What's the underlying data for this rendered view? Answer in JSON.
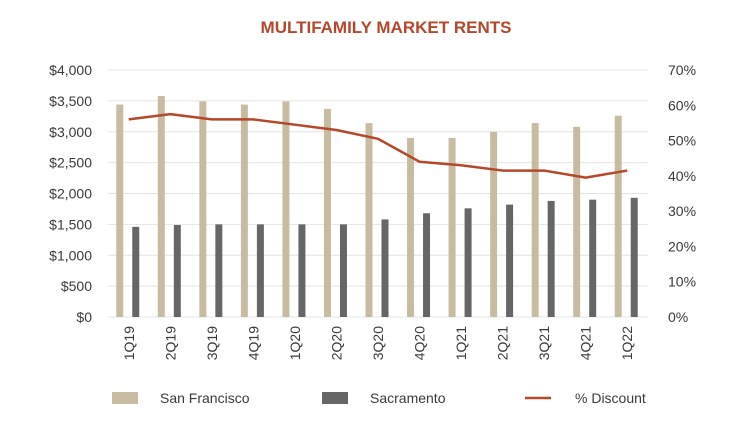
{
  "chart_data": {
    "type": "bar",
    "title": "MULTIFAMILY MARKET RENTS",
    "categories": [
      "1Q19",
      "2Q19",
      "3Q19",
      "4Q19",
      "1Q20",
      "2Q20",
      "3Q20",
      "4Q20",
      "1Q21",
      "2Q21",
      "3Q21",
      "4Q21",
      "1Q22"
    ],
    "series": [
      {
        "name": "San Francisco",
        "kind": "bar",
        "axis": "left",
        "color": "#c7bca2",
        "values": [
          3440,
          3580,
          3490,
          3440,
          3490,
          3370,
          3140,
          2900,
          2900,
          3000,
          3140,
          3080,
          3260
        ]
      },
      {
        "name": "Sacramento",
        "kind": "bar",
        "axis": "left",
        "color": "#666666",
        "values": [
          1460,
          1490,
          1500,
          1500,
          1500,
          1500,
          1580,
          1680,
          1760,
          1820,
          1880,
          1900,
          1930
        ]
      },
      {
        "name": "% Discount",
        "kind": "line",
        "axis": "right",
        "color": "#b5472a",
        "values": [
          56,
          57.5,
          56,
          56,
          54.5,
          53,
          50.5,
          44,
          43,
          41.5,
          41.5,
          39.5,
          41.5
        ]
      }
    ],
    "y_left": {
      "min": 0,
      "max": 4000,
      "step": 500,
      "tick_labels": [
        "$0",
        "$500",
        "$1,000",
        "$1,500",
        "$2,000",
        "$2,500",
        "$3,000",
        "$3,500",
        "$4,000"
      ]
    },
    "y_right": {
      "min": 0,
      "max": 70,
      "step": 10,
      "tick_labels": [
        "0%",
        "10%",
        "20%",
        "30%",
        "40%",
        "50%",
        "60%",
        "70%"
      ]
    },
    "grid": true,
    "legend_position": "bottom"
  }
}
